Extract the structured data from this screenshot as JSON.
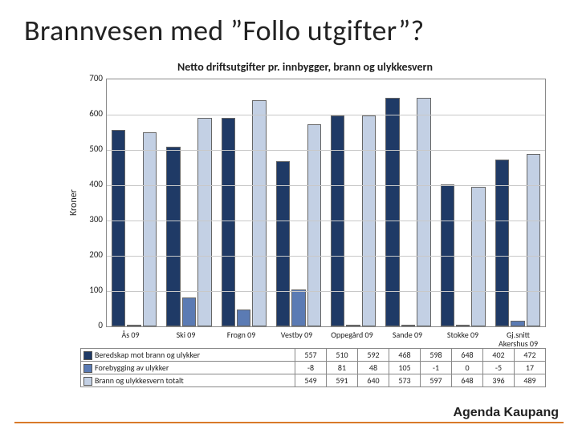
{
  "slide": {
    "title": "Brannvesen med ”Follo utgifter”?",
    "footer": "Agenda Kaupang"
  },
  "chart": {
    "type": "bar",
    "title": "Netto driftsutgifter pr. innbygger, brann og ulykkesvern",
    "ylabel": "Kroner",
    "ylim_min": 0,
    "ylim_max": 700,
    "ytick_step": 100,
    "yticks": [
      700,
      600,
      500,
      400,
      300,
      200,
      100,
      0
    ],
    "grid_color": "#c8c8c8",
    "border_color": "#8a8a8a",
    "background_color": "#ffffff",
    "bar_border_color": "#666666",
    "label_fontsize": 11,
    "title_fontsize": 14,
    "categories": [
      "Ås 09",
      "Ski 09",
      "Frogn 09",
      "Vestby 09",
      "Oppegård 09",
      "Sande 09",
      "Stokke 09",
      "Gj.snitt Akershus 09"
    ],
    "series": [
      {
        "name": "Beredskap mot brann og ulykker",
        "color": "#1f3a66",
        "values": [
          557,
          510,
          592,
          468,
          598,
          648,
          402,
          472
        ]
      },
      {
        "name": "Forebygging av ulykker",
        "color": "#5b7bb4",
        "values": [
          -8,
          81,
          48,
          105,
          -1,
          0,
          -5,
          17
        ]
      },
      {
        "name": "Brann og ulykkesvern totalt",
        "color": "#c3d0e4",
        "values": [
          549,
          591,
          640,
          573,
          597,
          648,
          396,
          489
        ]
      }
    ]
  }
}
